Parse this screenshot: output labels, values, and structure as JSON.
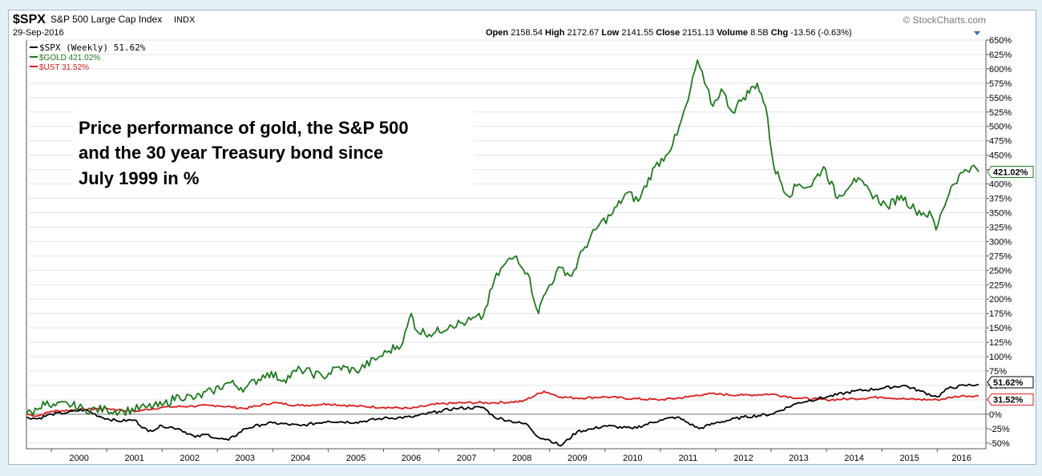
{
  "header": {
    "symbol": "$SPX",
    "index_name": "S&P 500 Large Cap Index",
    "exchange": "INDX",
    "date": "29-Sep-2016",
    "brand": "© StockCharts.com",
    "quote": {
      "open_label": "Open",
      "open": "2158.54",
      "high_label": "High",
      "high": "2172.67",
      "low_label": "Low",
      "low": "2141.55",
      "close_label": "Close",
      "close": "2151.13",
      "volume_label": "Volume",
      "volume": "8.5B",
      "chg_label": "Chg",
      "chg": "-13.56 (-0.63%)"
    }
  },
  "legend": [
    {
      "label": "$SPX (Weekly) 51.62%",
      "color": "#000000"
    },
    {
      "label": "$GOLD 421.02%",
      "color": "#1e7a1e"
    },
    {
      "label": "$UST 31.52%",
      "color": "#e01b1b"
    }
  ],
  "annotation": {
    "lines": [
      "Price performance of gold, the S&P 500",
      "and the 30 year Treasury bond since",
      "July 1999  in %"
    ]
  },
  "end_labels": {
    "gold": "421.02%",
    "spx": "51.62%",
    "ust": "31.52%"
  },
  "chart_data": {
    "type": "line",
    "title": "",
    "xlabel": "",
    "ylabel": "",
    "x_tick_labels": [
      "2000",
      "2001",
      "2002",
      "2003",
      "2004",
      "2005",
      "2006",
      "2007",
      "2008",
      "2009",
      "2010",
      "2011",
      "2012",
      "2013",
      "2014",
      "2015",
      "2016"
    ],
    "x_tick_positions": [
      2000.0,
      2001.0,
      2002.0,
      2003.0,
      2004.0,
      2005.0,
      2006.0,
      2007.0,
      2008.0,
      2009.0,
      2010.0,
      2011.0,
      2012.0,
      2013.0,
      2014.0,
      2015.0,
      2016.0
    ],
    "xlim": [
      1999.55,
      2016.88
    ],
    "ylim": [
      -60,
      650
    ],
    "y_ticks": [
      -50,
      -25,
      0,
      25,
      50,
      75,
      100,
      125,
      150,
      175,
      200,
      225,
      250,
      275,
      300,
      325,
      350,
      375,
      400,
      425,
      450,
      475,
      500,
      525,
      550,
      575,
      600,
      625,
      650
    ],
    "y_tick_suffix": "%",
    "grid": "horizontal-lines",
    "legend_position": "top-left",
    "series": [
      {
        "name": "$GOLD",
        "color": "#1e7a1e",
        "x": [
          1999.55,
          1999.75,
          1999.85,
          2000.0,
          2000.3,
          2000.6,
          2001.0,
          2001.3,
          2001.7,
          2002.0,
          2002.3,
          2002.6,
          2002.9,
          2003.2,
          2003.5,
          2003.9,
          2004.2,
          2004.5,
          2004.9,
          2005.2,
          2005.5,
          2005.9,
          2006.1,
          2006.35,
          2006.5,
          2006.6,
          2006.9,
          2007.2,
          2007.5,
          2007.8,
          2008.0,
          2008.2,
          2008.4,
          2008.6,
          2008.8,
          2008.85,
          2009.0,
          2009.2,
          2009.4,
          2009.6,
          2009.9,
          2010.1,
          2010.4,
          2010.6,
          2010.9,
          2011.1,
          2011.3,
          2011.5,
          2011.67,
          2011.8,
          2011.95,
          2012.1,
          2012.3,
          2012.5,
          2012.75,
          2012.9,
          2013.05,
          2013.3,
          2013.5,
          2013.7,
          2013.95,
          2014.2,
          2014.5,
          2014.8,
          2015.1,
          2015.35,
          2015.6,
          2015.9,
          2015.98,
          2016.1,
          2016.25,
          2016.5,
          2016.62,
          2016.75
        ],
        "y": [
          0,
          8,
          22,
          12,
          18,
          8,
          8,
          5,
          12,
          15,
          32,
          28,
          40,
          55,
          45,
          72,
          60,
          78,
          65,
          82,
          75,
          98,
          110,
          125,
          175,
          145,
          140,
          155,
          160,
          170,
          232,
          262,
          275,
          245,
          175,
          195,
          225,
          255,
          240,
          285,
          330,
          345,
          385,
          370,
          430,
          450,
          485,
          545,
          615,
          575,
          535,
          565,
          525,
          550,
          575,
          535,
          430,
          380,
          400,
          395,
          430,
          375,
          410,
          385,
          360,
          380,
          355,
          345,
          320,
          355,
          395,
          425,
          430,
          421.02
        ]
      },
      {
        "name": "$SPX",
        "color": "#000000",
        "x": [
          1999.55,
          1999.75,
          2000.0,
          2000.3,
          2000.6,
          2000.9,
          2001.2,
          2001.5,
          2001.75,
          2002.0,
          2002.3,
          2002.6,
          2002.8,
          2003.0,
          2003.2,
          2003.5,
          2003.8,
          2004.0,
          2004.5,
          2005.0,
          2005.5,
          2006.0,
          2006.5,
          2007.0,
          2007.3,
          2007.8,
          2008.0,
          2008.3,
          2008.6,
          2008.8,
          2009.0,
          2009.2,
          2009.5,
          2009.8,
          2010.0,
          2010.5,
          2011.0,
          2011.3,
          2011.7,
          2012.0,
          2012.5,
          2013.0,
          2013.5,
          2014.0,
          2014.5,
          2015.0,
          2015.4,
          2015.7,
          2016.0,
          2016.2,
          2016.5,
          2016.75
        ],
        "y": [
          -5,
          -8,
          0,
          3,
          8,
          -5,
          -12,
          -10,
          -30,
          -20,
          -25,
          -40,
          -35,
          -42,
          -45,
          -25,
          -18,
          -15,
          -20,
          -12,
          -14,
          -7,
          -5,
          5,
          10,
          12,
          -5,
          -12,
          -18,
          -40,
          -45,
          -55,
          -30,
          -25,
          -20,
          -25,
          -10,
          -5,
          -25,
          -15,
          -5,
          0,
          20,
          30,
          40,
          45,
          50,
          40,
          30,
          45,
          50,
          51.62
        ]
      },
      {
        "name": "$UST",
        "color": "#e01b1b",
        "x": [
          1999.55,
          1999.75,
          2000.0,
          2000.5,
          2001.0,
          2001.5,
          2002.0,
          2002.5,
          2003.0,
          2003.5,
          2004.0,
          2004.5,
          2005.0,
          2005.5,
          2006.0,
          2006.5,
          2007.0,
          2007.5,
          2008.0,
          2008.5,
          2008.9,
          2009.2,
          2009.5,
          2010.0,
          2010.5,
          2011.0,
          2011.5,
          2011.8,
          2012.0,
          2012.5,
          2013.0,
          2013.5,
          2014.0,
          2014.5,
          2015.0,
          2015.5,
          2016.0,
          2016.3,
          2016.5,
          2016.75
        ],
        "y": [
          0,
          -3,
          5,
          8,
          10,
          5,
          12,
          14,
          15,
          10,
          20,
          15,
          18,
          14,
          12,
          10,
          18,
          20,
          20,
          22,
          40,
          30,
          28,
          30,
          27,
          25,
          30,
          35,
          35,
          33,
          35,
          28,
          25,
          27,
          30,
          26,
          25,
          30,
          32,
          31.52
        ]
      }
    ]
  }
}
